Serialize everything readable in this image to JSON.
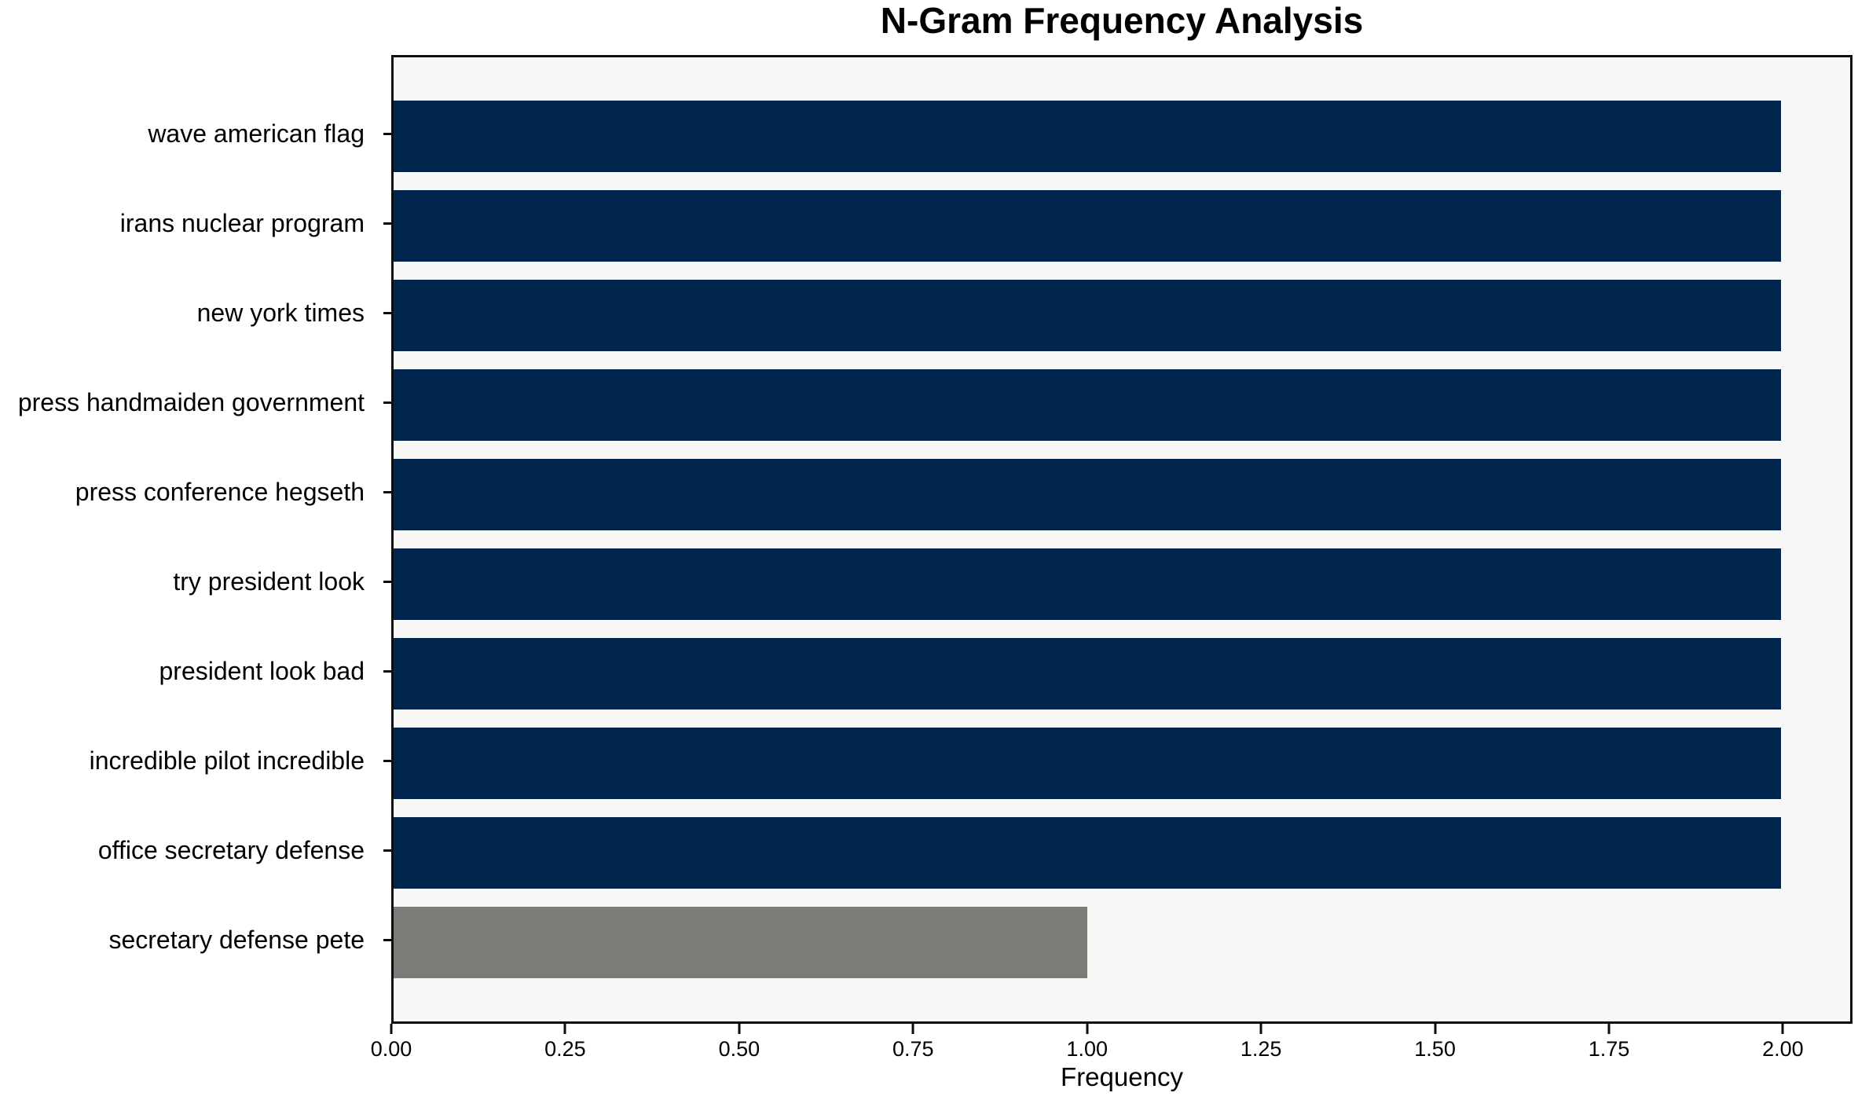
{
  "chart_data": {
    "type": "bar",
    "orientation": "horizontal",
    "title": "N-Gram Frequency Analysis",
    "xlabel": "Frequency",
    "ylabel": "",
    "categories": [
      "wave american flag",
      "irans nuclear program",
      "new york times",
      "press handmaiden government",
      "press conference hegseth",
      "try president look",
      "president look bad",
      "incredible pilot incredible",
      "office secretary defense",
      "secretary defense pete"
    ],
    "values": [
      2,
      2,
      2,
      2,
      2,
      2,
      2,
      2,
      2,
      1
    ],
    "bar_colors": [
      "#02254e",
      "#02254e",
      "#02254e",
      "#02254e",
      "#02254e",
      "#02254e",
      "#02254e",
      "#02254e",
      "#02254e",
      "#7b7b78"
    ],
    "xlim": [
      0,
      2.1
    ],
    "xticks": [
      0.0,
      0.25,
      0.5,
      0.75,
      1.0,
      1.25,
      1.5,
      1.75,
      2.0
    ],
    "xtick_labels": [
      "0.00",
      "0.25",
      "0.50",
      "0.75",
      "1.00",
      "1.25",
      "1.50",
      "1.75",
      "2.00"
    ],
    "grid": false,
    "legend": "none",
    "colors": {
      "plot_background": "#f7f7f6",
      "figure_background": "#ffffff",
      "frame": "#0d0d0d",
      "bar_primary": "#02254e",
      "bar_secondary": "#7b7b78",
      "text": "#000000"
    }
  }
}
